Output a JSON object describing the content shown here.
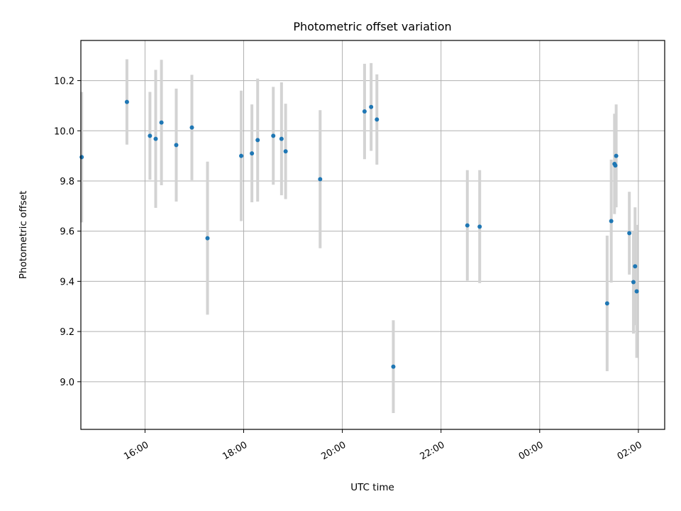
{
  "chart_data": {
    "type": "scatter",
    "title": "Photometric offset variation",
    "xlabel": "UTC time",
    "ylabel": "Photometric offset",
    "grid": true,
    "xlim": [
      "14:42",
      "02:32"
    ],
    "ylim": [
      8.81,
      10.36
    ],
    "x_ticks": [
      "16:00",
      "18:00",
      "20:00",
      "22:00",
      "00:00",
      "02:00"
    ],
    "y_ticks": [
      9.0,
      9.2,
      9.4,
      9.6,
      9.8,
      10.0,
      10.2
    ],
    "colors": {
      "point": "#1f77b4",
      "errorbar": "#d3d3d3",
      "grid": "#b0b0b0"
    },
    "points": [
      {
        "x": "14:43",
        "y": 9.895,
        "yerr": 0.26
      },
      {
        "x": "15:38",
        "y": 10.115,
        "yerr": 0.17
      },
      {
        "x": "16:06",
        "y": 9.98,
        "yerr": 0.175
      },
      {
        "x": "16:13",
        "y": 9.968,
        "yerr": 0.275
      },
      {
        "x": "16:20",
        "y": 10.033,
        "yerr": 0.25
      },
      {
        "x": "16:38",
        "y": 9.943,
        "yerr": 0.225
      },
      {
        "x": "16:57",
        "y": 10.013,
        "yerr": 0.21
      },
      {
        "x": "17:16",
        "y": 9.572,
        "yerr": 0.305
      },
      {
        "x": "17:57",
        "y": 9.9,
        "yerr": 0.26
      },
      {
        "x": "18:10",
        "y": 9.91,
        "yerr": 0.195
      },
      {
        "x": "18:17",
        "y": 9.963,
        "yerr": 0.245
      },
      {
        "x": "18:36",
        "y": 9.98,
        "yerr": 0.195
      },
      {
        "x": "18:46",
        "y": 9.968,
        "yerr": 0.225
      },
      {
        "x": "18:51",
        "y": 9.918,
        "yerr": 0.19
      },
      {
        "x": "19:33",
        "y": 9.807,
        "yerr": 0.275
      },
      {
        "x": "20:27",
        "y": 10.077,
        "yerr": 0.19
      },
      {
        "x": "20:35",
        "y": 10.095,
        "yerr": 0.175
      },
      {
        "x": "20:42",
        "y": 10.045,
        "yerr": 0.18
      },
      {
        "x": "21:02",
        "y": 9.06,
        "yerr": 0.185
      },
      {
        "x": "22:32",
        "y": 9.623,
        "yerr": 0.22
      },
      {
        "x": "22:47",
        "y": 9.618,
        "yerr": 0.225
      },
      {
        "x": "01:22",
        "y": 9.312,
        "yerr": 0.27
      },
      {
        "x": "01:27",
        "y": 9.64,
        "yerr": 0.245
      },
      {
        "x": "01:31",
        "y": 9.868,
        "yerr": 0.2
      },
      {
        "x": "01:32",
        "y": 9.862,
        "yerr": 0.165
      },
      {
        "x": "01:33",
        "y": 9.9,
        "yerr": 0.205
      },
      {
        "x": "01:49",
        "y": 9.592,
        "yerr": 0.165
      },
      {
        "x": "01:54",
        "y": 9.397,
        "yerr": 0.205
      },
      {
        "x": "01:56",
        "y": 9.46,
        "yerr": 0.235
      },
      {
        "x": "01:58",
        "y": 9.36,
        "yerr": 0.265
      }
    ]
  }
}
